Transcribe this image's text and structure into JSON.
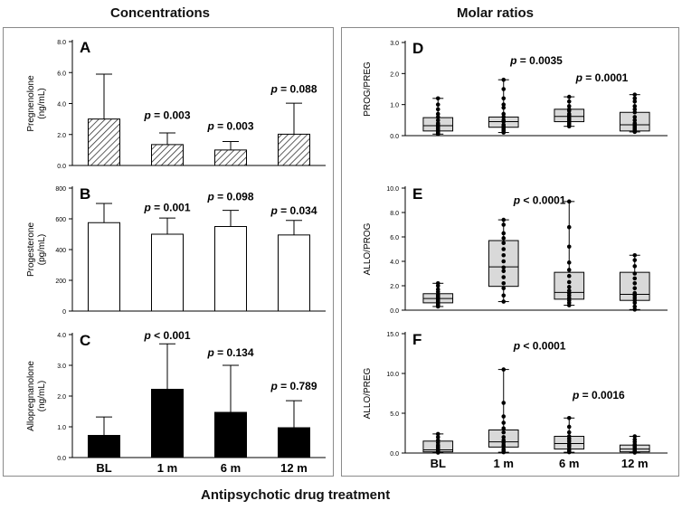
{
  "headers": {
    "left": "Concentrations",
    "right": "Molar ratios",
    "bottom": "Antipsychotic drug treatment"
  },
  "categories": [
    "BL",
    "1 m",
    "6 m",
    "12 m"
  ],
  "colors": {
    "hatch": "#333333",
    "black": "#000000",
    "box_fill": "#d9d9d9",
    "frame": "#8a8a8a"
  },
  "chart_data": [
    {
      "id": "A",
      "type": "bar",
      "style": "hatched",
      "title": "A",
      "ylabel_lines": [
        "Pregnenolone",
        "(ng/mL)"
      ],
      "categories": [
        "BL",
        "1 m",
        "6 m",
        "12 m"
      ],
      "values": [
        3.0,
        1.35,
        1.0,
        2.02
      ],
      "errors": [
        2.9,
        0.75,
        0.55,
        2.0
      ],
      "ylim": [
        0,
        8
      ],
      "ticks": [
        0,
        2,
        4,
        6,
        8
      ],
      "tick_labels": [
        "0.0",
        "2.0",
        "4.0",
        "6.0",
        "8.0"
      ],
      "annotations": [
        {
          "text_p": "p",
          "text_v": " = 0.003",
          "cat": 1,
          "y": 3.0
        },
        {
          "text_p": "p",
          "text_v": " = 0.003",
          "cat": 2,
          "y": 2.3
        },
        {
          "text_p": "p",
          "text_v": " = 0.088",
          "cat": 3,
          "y": 4.7
        }
      ]
    },
    {
      "id": "B",
      "type": "bar",
      "style": "white",
      "title": "B",
      "ylabel_lines": [
        "Progesterone",
        "(pg/mL)"
      ],
      "categories": [
        "BL",
        "1 m",
        "6 m",
        "12 m"
      ],
      "values": [
        575,
        500,
        550,
        495
      ],
      "errors": [
        125,
        105,
        105,
        95
      ],
      "ylim": [
        0,
        800
      ],
      "ticks": [
        0,
        200,
        400,
        600,
        800
      ],
      "tick_labels": [
        "0",
        "200",
        "400",
        "600",
        "800"
      ],
      "annotations": [
        {
          "text_p": "p",
          "text_v": " = 0.001",
          "cat": 1,
          "y": 650
        },
        {
          "text_p": "p",
          "text_v": " = 0.098",
          "cat": 2,
          "y": 720
        },
        {
          "text_p": "p",
          "text_v": " = 0.034",
          "cat": 3,
          "y": 630
        }
      ]
    },
    {
      "id": "C",
      "type": "bar",
      "style": "black",
      "title": "C",
      "ylabel_lines": [
        "Allopregnanolone",
        "(ng/mL)"
      ],
      "categories": [
        "BL",
        "1 m",
        "6 m",
        "12 m"
      ],
      "values": [
        0.72,
        2.22,
        1.47,
        0.97
      ],
      "errors": [
        0.6,
        1.48,
        1.53,
        0.88
      ],
      "ylim": [
        0,
        4
      ],
      "ticks": [
        0,
        1,
        2,
        3,
        4
      ],
      "tick_labels": [
        "0.0",
        "1.0",
        "2.0",
        "3.0",
        "4.0"
      ],
      "annotations": [
        {
          "text_p": "p",
          "text_v": " < 0.001",
          "cat": 1,
          "y": 3.85
        },
        {
          "text_p": "p",
          "text_v": " = 0.134",
          "cat": 2,
          "y": 3.3
        },
        {
          "text_p": "p",
          "text_v": " = 0.789",
          "cat": 3,
          "y": 2.2
        }
      ]
    },
    {
      "id": "D",
      "type": "box",
      "title": "D",
      "ylabel_lines": [
        "PROG/PREG"
      ],
      "categories": [
        "BL",
        "1 m",
        "6 m",
        "12 m"
      ],
      "boxes": [
        {
          "min": 0.05,
          "q1": 0.15,
          "median": 0.32,
          "q3": 0.58,
          "max": 1.2,
          "points": [
            0.05,
            0.08,
            0.12,
            0.15,
            0.2,
            0.25,
            0.3,
            0.35,
            0.4,
            0.5,
            0.6,
            0.7,
            0.85,
            1.0,
            1.2
          ]
        },
        {
          "min": 0.1,
          "q1": 0.27,
          "median": 0.45,
          "q3": 0.6,
          "max": 1.8,
          "points": [
            0.1,
            0.15,
            0.2,
            0.25,
            0.3,
            0.35,
            0.45,
            0.5,
            0.6,
            0.7,
            0.9,
            1.0,
            1.2,
            1.5,
            1.8
          ]
        },
        {
          "min": 0.3,
          "q1": 0.45,
          "median": 0.62,
          "q3": 0.85,
          "max": 1.25,
          "points": [
            0.3,
            0.35,
            0.4,
            0.45,
            0.5,
            0.55,
            0.6,
            0.65,
            0.7,
            0.8,
            0.85,
            0.95,
            1.1,
            1.25
          ]
        },
        {
          "min": 0.12,
          "q1": 0.15,
          "median": 0.35,
          "q3": 0.75,
          "max": 1.32,
          "points": [
            0.12,
            0.15,
            0.2,
            0.25,
            0.3,
            0.35,
            0.4,
            0.5,
            0.6,
            0.75,
            0.85,
            0.95,
            1.1,
            1.2,
            1.32
          ]
        }
      ],
      "ylim": [
        0,
        3
      ],
      "ticks": [
        0,
        1,
        2,
        3
      ],
      "tick_labels": [
        "0.0",
        "1.0",
        "2.0",
        "3.0"
      ],
      "annotations": [
        {
          "text_p": "p",
          "text_v": " = 0.0035",
          "cat": 1.5,
          "y": 2.3
        },
        {
          "text_p": "p",
          "text_v": " = 0.0001",
          "cat": 2.5,
          "y": 1.75
        }
      ]
    },
    {
      "id": "E",
      "type": "box",
      "title": "E",
      "ylabel_lines": [
        "ALLO/PROG"
      ],
      "categories": [
        "BL",
        "1 m",
        "6 m",
        "12 m"
      ],
      "boxes": [
        {
          "min": 0.3,
          "q1": 0.6,
          "median": 0.95,
          "q3": 1.35,
          "max": 2.2,
          "points": [
            0.3,
            0.4,
            0.5,
            0.6,
            0.7,
            0.8,
            0.9,
            1.0,
            1.1,
            1.2,
            1.3,
            1.5,
            1.7,
            2.0,
            2.2
          ]
        },
        {
          "min": 0.7,
          "q1": 1.95,
          "median": 3.55,
          "q3": 5.7,
          "max": 7.4,
          "points": [
            0.7,
            1.2,
            1.8,
            2.2,
            2.7,
            3.2,
            3.5,
            4.0,
            4.5,
            5.0,
            5.5,
            5.9,
            6.3,
            7.0,
            7.4
          ]
        },
        {
          "min": 0.4,
          "q1": 0.9,
          "median": 1.45,
          "q3": 3.1,
          "max": 8.9,
          "points": [
            0.4,
            0.6,
            0.8,
            1.0,
            1.2,
            1.4,
            1.6,
            1.9,
            2.3,
            2.8,
            3.3,
            3.9,
            5.2,
            6.8,
            8.9
          ]
        },
        {
          "min": 0.05,
          "q1": 0.8,
          "median": 1.3,
          "q3": 3.1,
          "max": 4.5,
          "points": [
            0.05,
            0.3,
            0.6,
            0.8,
            1.0,
            1.2,
            1.4,
            1.8,
            2.2,
            2.6,
            3.0,
            3.6,
            4.1,
            4.5
          ]
        }
      ],
      "ylim": [
        0,
        10
      ],
      "ticks": [
        0,
        2,
        4,
        6,
        8,
        10
      ],
      "tick_labels": [
        "0.0",
        "2.0",
        "4.0",
        "6.0",
        "8.0",
        "10.0"
      ],
      "annotations": [
        {
          "text_p": "p",
          "text_v": " < 0.0001",
          "cat": 1.55,
          "y": 8.7
        }
      ]
    },
    {
      "id": "F",
      "type": "box",
      "title": "F",
      "ylabel_lines": [
        "ALLO/PREG"
      ],
      "categories": [
        "BL",
        "1 m",
        "6 m",
        "12 m"
      ],
      "boxes": [
        {
          "min": 0.05,
          "q1": 0.15,
          "median": 0.4,
          "q3": 1.5,
          "max": 2.4,
          "points": [
            0.05,
            0.1,
            0.2,
            0.3,
            0.4,
            0.6,
            0.8,
            1.0,
            1.3,
            1.6,
            2.0,
            2.4
          ]
        },
        {
          "min": 0.1,
          "q1": 0.75,
          "median": 1.4,
          "q3": 2.9,
          "max": 10.5,
          "points": [
            0.1,
            0.3,
            0.5,
            0.8,
            1.0,
            1.3,
            1.6,
            2.0,
            2.6,
            3.1,
            3.8,
            4.6,
            6.3,
            10.5
          ]
        },
        {
          "min": 0.1,
          "q1": 0.5,
          "median": 1.2,
          "q3": 2.1,
          "max": 4.4,
          "points": [
            0.1,
            0.3,
            0.5,
            0.8,
            1.0,
            1.2,
            1.5,
            1.8,
            2.1,
            2.6,
            3.3,
            4.4
          ]
        },
        {
          "min": 0.05,
          "q1": 0.15,
          "median": 0.5,
          "q3": 1.0,
          "max": 2.1,
          "points": [
            0.05,
            0.1,
            0.2,
            0.3,
            0.5,
            0.7,
            0.9,
            1.1,
            1.4,
            1.7,
            2.1
          ]
        }
      ],
      "ylim": [
        0,
        15
      ],
      "ticks": [
        0,
        5,
        10,
        15
      ],
      "tick_labels": [
        "0.0",
        "5.0",
        "10.0",
        "15.0"
      ],
      "annotations": [
        {
          "text_p": "p",
          "text_v": " < 0.0001",
          "cat": 1.55,
          "y": 13.0
        },
        {
          "text_p": "p",
          "text_v": " = 0.0016",
          "cat": 2.45,
          "y": 6.8
        }
      ]
    }
  ]
}
